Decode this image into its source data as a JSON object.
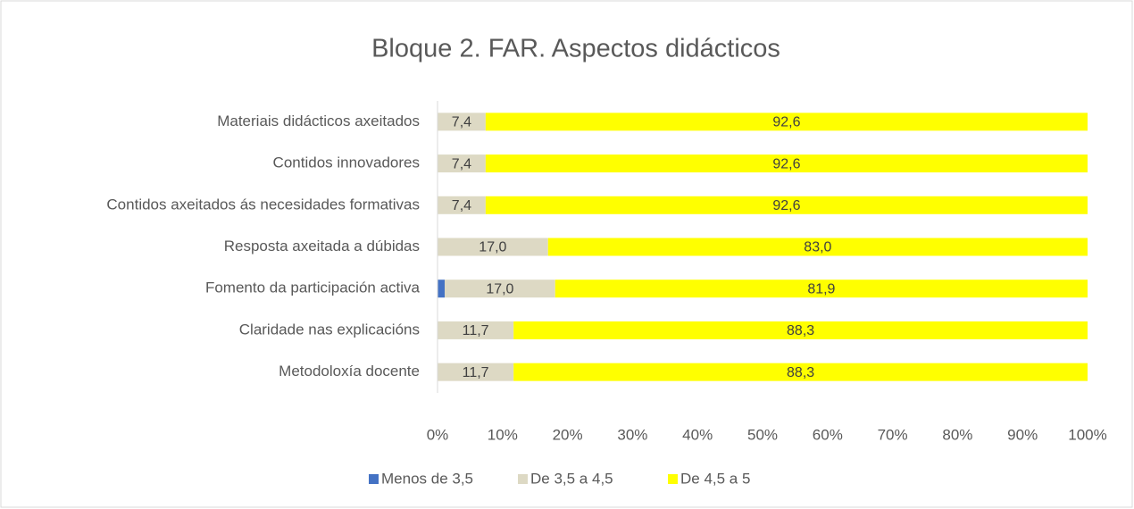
{
  "chart_data": {
    "type": "stacked_barh",
    "title": "Bloque 2. FAR. Aspectos didácticos",
    "categories": [
      "Materiais didácticos axeitados",
      "Contidos innovadores",
      "Contidos axeitados ás necesidades formativas",
      "Resposta axeitada a dúbidas",
      "Fomento da participación activa",
      "Claridade nas explicacións",
      "Metodoloxía docente"
    ],
    "series": [
      {
        "name": "Menos de 3,5",
        "color": "#4472c4",
        "values": [
          0,
          0,
          0,
          0,
          1.1,
          0,
          0
        ]
      },
      {
        "name": "De 3,5 a 4,5",
        "color": "#ddd9c4",
        "values": [
          7.4,
          7.4,
          7.4,
          17.0,
          17.0,
          11.7,
          11.7
        ],
        "value_labels": [
          "7,4",
          "7,4",
          "7,4",
          "17,0",
          "17,0",
          "11,7",
          "11,7"
        ]
      },
      {
        "name": "De 4,5 a 5",
        "color": "#ffff00",
        "values": [
          92.6,
          92.6,
          92.6,
          83.0,
          81.9,
          88.3,
          88.3
        ],
        "value_labels": [
          "92,6",
          "92,6",
          "92,6",
          "83,0",
          "81,9",
          "88,3",
          "88,3"
        ]
      }
    ],
    "xlim": [
      0,
      100
    ],
    "xticks": [
      {
        "value": 0,
        "label": "0%"
      },
      {
        "value": 10,
        "label": "10%"
      },
      {
        "value": 20,
        "label": "20%"
      },
      {
        "value": 30,
        "label": "30%"
      },
      {
        "value": 40,
        "label": "40%"
      },
      {
        "value": 50,
        "label": "50%"
      },
      {
        "value": 60,
        "label": "60%"
      },
      {
        "value": 70,
        "label": "70%"
      },
      {
        "value": 80,
        "label": "80%"
      },
      {
        "value": 90,
        "label": "90%"
      },
      {
        "value": 100,
        "label": "100%"
      }
    ],
    "legend": "bottom"
  }
}
